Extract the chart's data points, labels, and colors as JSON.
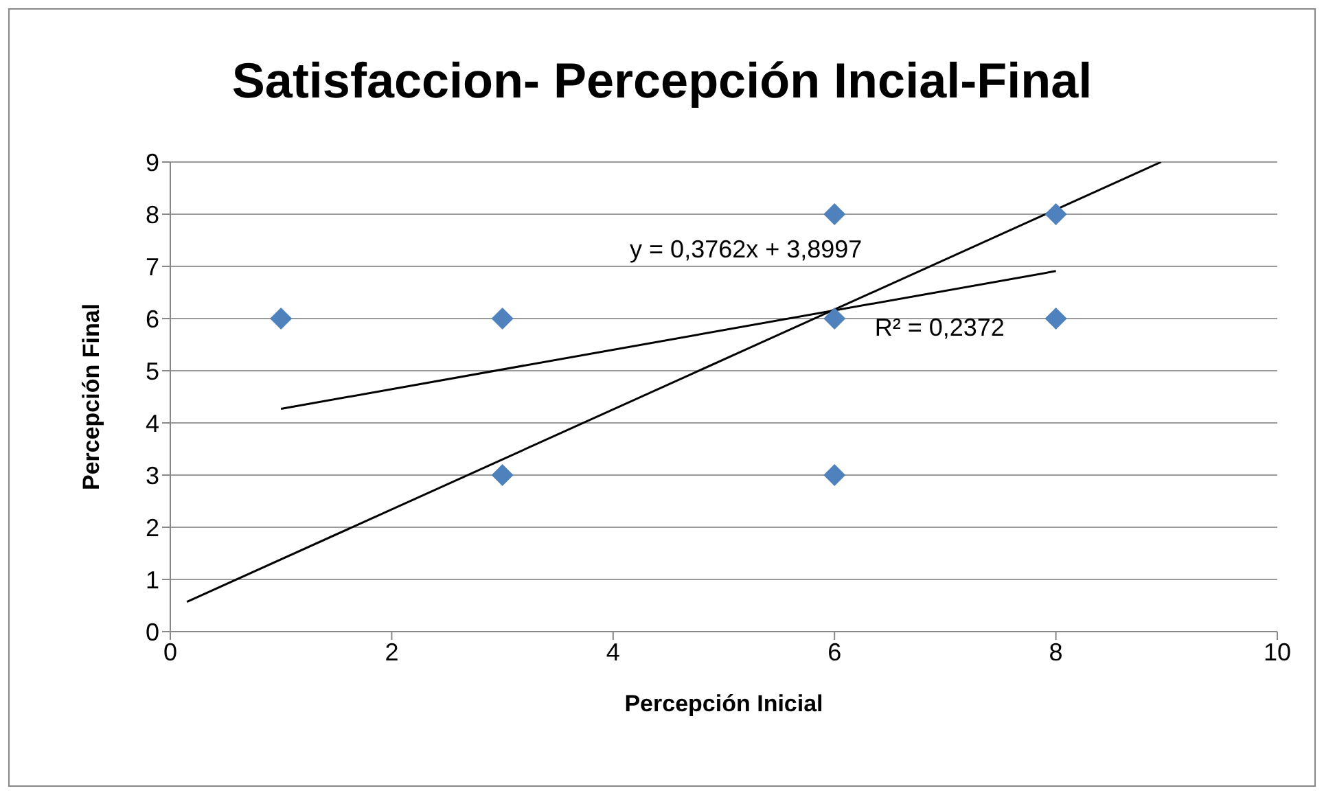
{
  "chart_data": {
    "type": "scatter",
    "title": "Satisfaccion- Percepción Incial-Final",
    "xlabel": "Percepción Inicial",
    "ylabel": "Percepción Final",
    "series": [
      {
        "type": "scatter",
        "color": "#4f81bd",
        "marker": "diamond",
        "x": [
          1,
          3,
          3,
          6,
          6,
          6,
          8,
          8
        ],
        "values": [
          6,
          6,
          3,
          8,
          6,
          3,
          8,
          6
        ]
      },
      {
        "type": "line",
        "color": "#000000",
        "marker": "none",
        "x": [
          1,
          8
        ],
        "values": [
          4.27,
          6.91
        ]
      },
      {
        "type": "line",
        "color": "#000000",
        "marker": "none",
        "x": [
          0.15,
          8.95
        ],
        "values": [
          0.57,
          9
        ]
      }
    ],
    "annotations": [
      "y = 0,3762x + 3,8997",
      "R² = 0,2372"
    ],
    "xlim": [
      0,
      10
    ],
    "xticks": [
      0,
      2,
      4,
      6,
      8,
      10
    ],
    "ylim": [
      0,
      9
    ],
    "yticks": [
      0,
      1,
      2,
      3,
      4,
      5,
      6,
      7,
      8,
      9
    ],
    "grid": "y",
    "legend": false
  }
}
